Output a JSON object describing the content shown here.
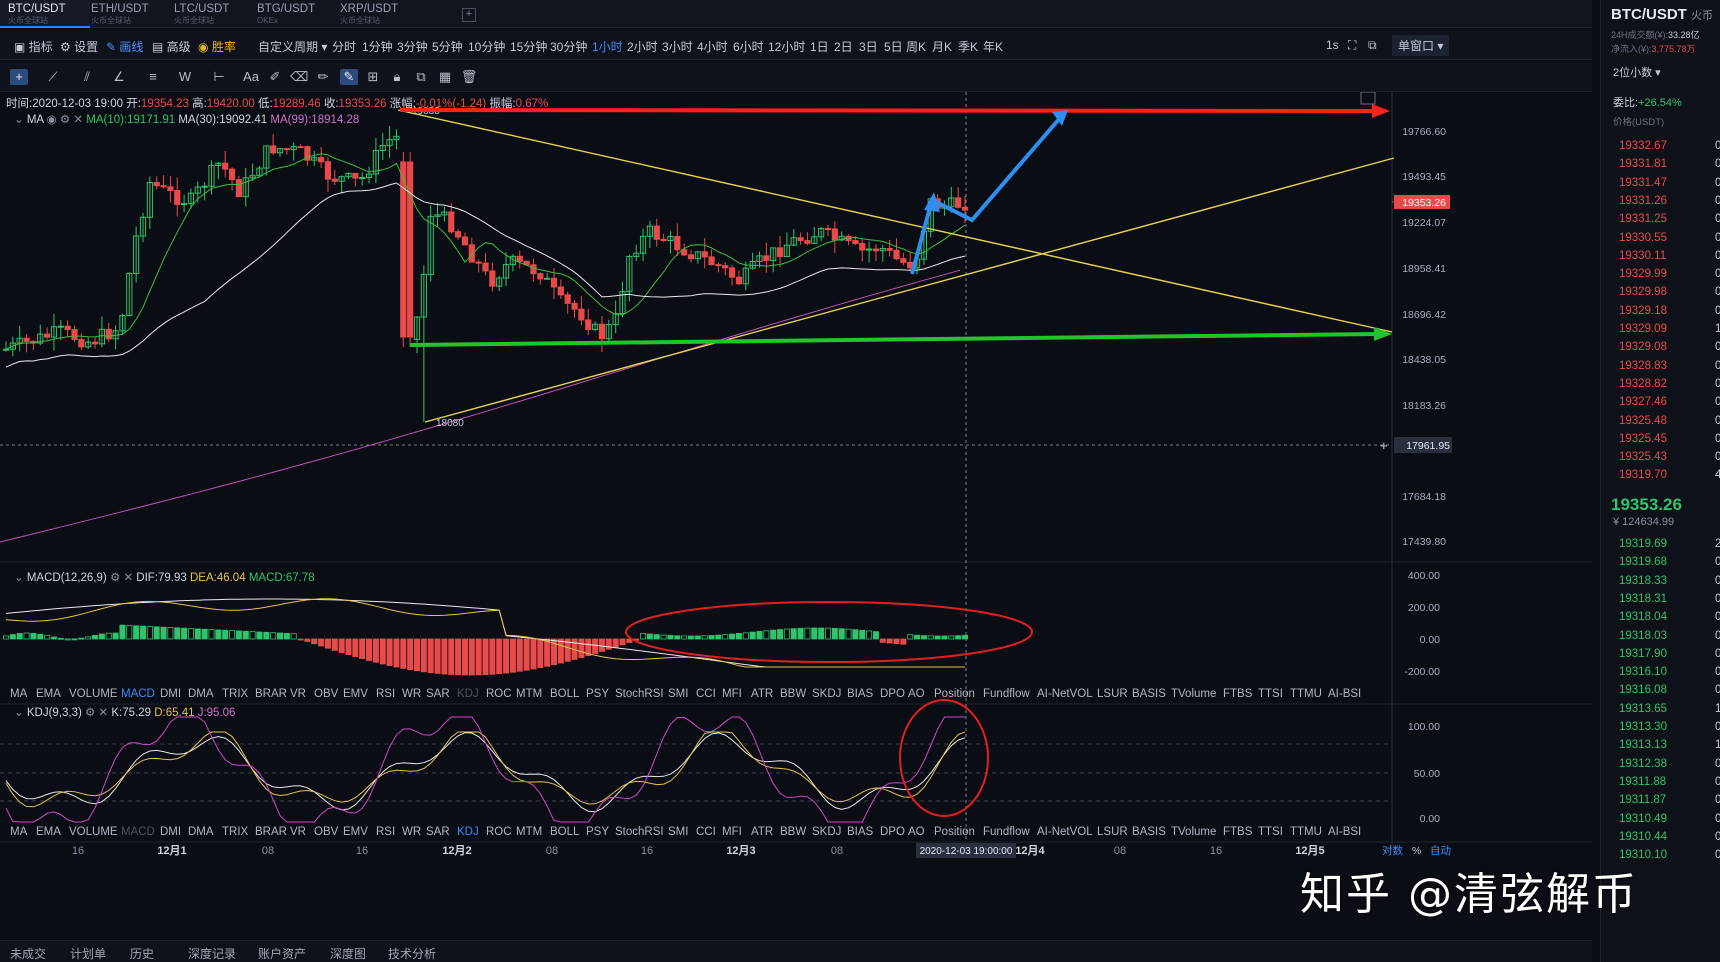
{
  "tabs": [
    {
      "name": "BTC/USDT",
      "sub": "火币全球站"
    },
    {
      "name": "ETH/USDT",
      "sub": "火币全球站"
    },
    {
      "name": "LTC/USDT",
      "sub": "火币全球站"
    },
    {
      "name": "BTG/USDT",
      "sub": "OKEx"
    },
    {
      "name": "XRP/USDT",
      "sub": "火币全球站"
    }
  ],
  "toolbar": {
    "indicator": "指标",
    "settings": "设置",
    "draw": "画线",
    "advanced": "高级",
    "win_rate": "胜率",
    "custom_period": "自定义周期",
    "periods": [
      "分时",
      "1分钟",
      "3分钟",
      "5分钟",
      "10分钟",
      "15分钟",
      "30分钟",
      "1小时",
      "2小时",
      "3小时",
      "4小时",
      "6小时",
      "12小时",
      "1日",
      "2日",
      "3日",
      "5日",
      "周K",
      "月K",
      "季K",
      "年K"
    ],
    "active_period": "1小时",
    "refresh": "1s",
    "window": "单窗口"
  },
  "ohlc": {
    "time_label": "时间:",
    "time": "2020-12-03 19:00",
    "open_label": "开:",
    "open": "19354.23",
    "high_label": "高:",
    "high": "19420.00",
    "low_label": "低:",
    "low": "19289.46",
    "close_label": "收:",
    "close": "19353.26",
    "chg_label": "涨幅:",
    "chg": "-0.01%(-1.24)",
    "amp_label": "振幅:",
    "amp": "0.67%"
  },
  "ma": {
    "label": "MA",
    "ma10": "MA(10):19171.91",
    "ma30": "MA(30):19092.41",
    "ma99": "MA(99):18914.28"
  },
  "price_axis": [
    "19766.60",
    "19493.45",
    "19224.07",
    "18958.41",
    "18696.42",
    "18438.05",
    "18183.26",
    "17684.18",
    "17439.80"
  ],
  "current_price_tag": "19353.26",
  "cursor_price_tag": "17961.95",
  "annotations": {
    "high_label": "19888",
    "low_label": "18080"
  },
  "macd": {
    "label": "MACD(12,26,9)",
    "dif": "DIF:79.93",
    "dea": "DEA:46.04",
    "macd": "MACD:67.78",
    "axis": [
      "400.00",
      "200.00",
      "0.00",
      "-200.00"
    ]
  },
  "kdj": {
    "label": "KDJ(9,3,3)",
    "k": "K:75.29",
    "d": "D:65.41",
    "j": "J:95.06",
    "axis": [
      "100.00",
      "50.00",
      "0.00"
    ]
  },
  "indicator_list": [
    "MA",
    "EMA",
    "VOLUME",
    "MACD",
    "DMI",
    "DMA",
    "TRIX",
    "BRAR",
    "VR",
    "OBV",
    "EMV",
    "RSI",
    "WR",
    "SAR",
    "KDJ",
    "ROC",
    "MTM",
    "BOLL",
    "PSY",
    "StochRSI",
    "SMI",
    "CCI",
    "MFI",
    "ATR",
    "BBW",
    "SKDJ",
    "BIAS",
    "DPO",
    "AO",
    "Position",
    "Fundflow",
    "AI-NetVOL",
    "LSUR",
    "BASIS",
    "TVolume",
    "FTBS",
    "TTSI",
    "TTMU",
    "AI-BSI"
  ],
  "time_axis": [
    "16",
    "12月1",
    "08",
    "16",
    "12月2",
    "08",
    "16",
    "12月3",
    "08",
    "12月4",
    "08",
    "16",
    "12月5"
  ],
  "cursor_time": "2020-12-03 19:00:00",
  "axis_mode": {
    "log": "对数",
    "pct": "%",
    "auto": "自动"
  },
  "bottom_tabs": [
    "未成交",
    "计划单",
    "历史",
    "深度记录",
    "账户资产",
    "深度图",
    "技术分析"
  ],
  "right_panel": {
    "pair": "BTC/USDT",
    "exchange": "火币",
    "vol_label": "24H成交额(¥):",
    "vol": "33.28亿",
    "inflow_label": "净流入(¥):",
    "inflow": "3,775.78万",
    "decimals": "2位小数",
    "ratio_label": "委比:",
    "ratio": "+26.54%",
    "price_unit": "价格(USDT)",
    "asks": [
      "19332.67",
      "19331.81",
      "19331.47",
      "19331.26",
      "19331.25",
      "19330.55",
      "19330.11",
      "19329.99",
      "19329.98",
      "19329.18",
      "19329.09",
      "19329.08",
      "19328.83",
      "19328.82",
      "19327.46",
      "19325.48",
      "19325.45",
      "19325.43",
      "19319.70"
    ],
    "ask_qty": [
      "0",
      "0",
      "0",
      "0",
      "0",
      "0",
      "0",
      "0",
      "0",
      "0",
      "1",
      "0",
      "0",
      "0",
      "0",
      "0",
      "0",
      "0",
      "4"
    ],
    "last": "19353.26",
    "last_cny": "¥ 124634.99",
    "bids": [
      "19319.69",
      "19319.68",
      "19318.33",
      "19318.31",
      "19318.04",
      "19318.03",
      "19317.90",
      "19316.10",
      "19316.08",
      "19313.65",
      "19313.30",
      "19313.13",
      "19312.38",
      "19311.88",
      "19311.87",
      "19310.49",
      "19310.44",
      "19310.10"
    ],
    "bid_qty": [
      "2",
      "0",
      "0",
      "0",
      "0",
      "0",
      "0",
      "0",
      "0",
      "1",
      "0",
      "1",
      "0",
      "0",
      "0",
      "0",
      "0",
      "0"
    ]
  },
  "watermark": "知乎 @清弦解币",
  "colors": {
    "up": "#2ec46b",
    "down": "#e84a4a",
    "accent": "#3a8cff",
    "trend_yellow": "#e8d44a",
    "arrow_red": "#ff2020",
    "arrow_green": "#22c42a",
    "arrow_blue": "#2f8ff0"
  }
}
